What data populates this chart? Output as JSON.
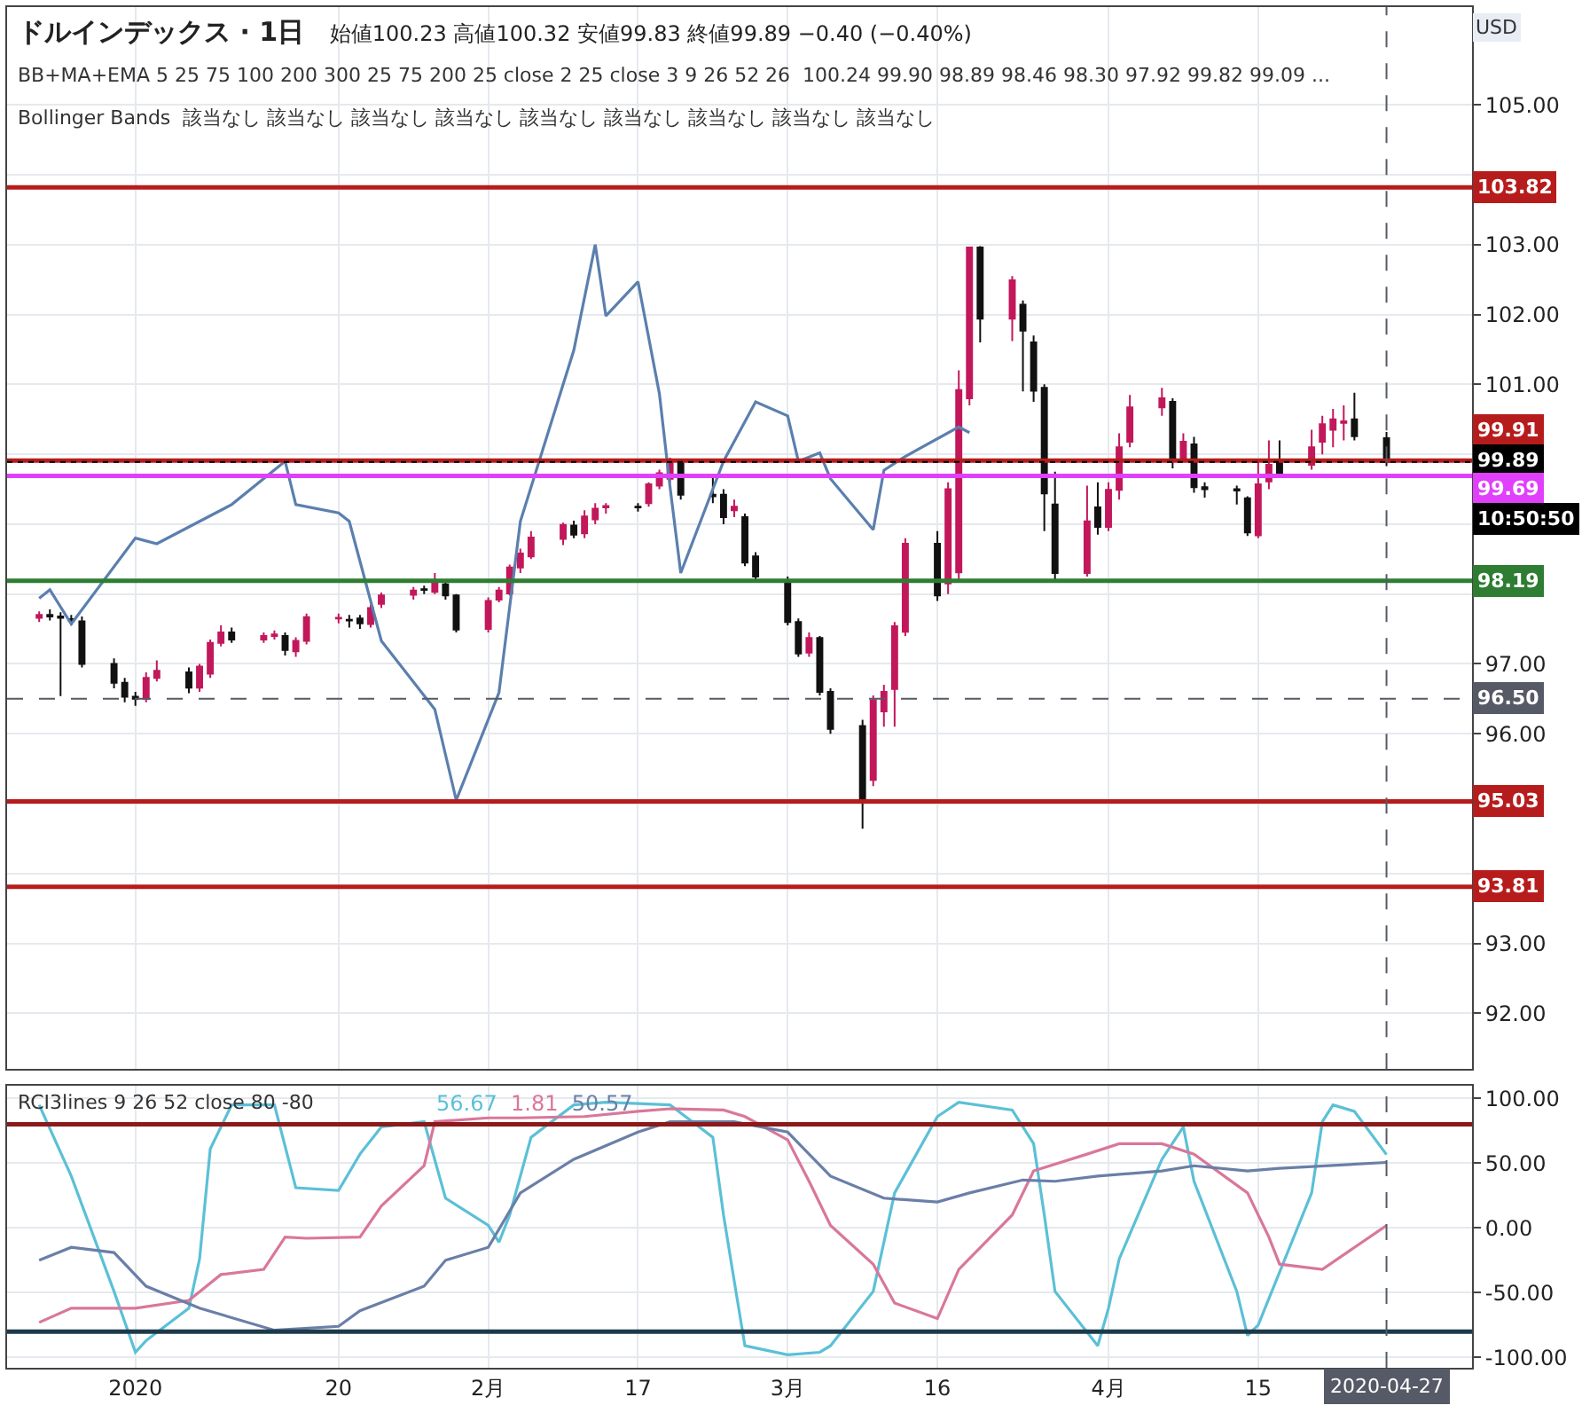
{
  "chart_data": [
    {
      "type": "candlestick",
      "title": "ドルインデックス · 1日",
      "subtitle": "始値100.23 高値100.32 安値99.83 終値99.89 −0.40 (−0.40%)",
      "annotations": [
        "BB+MA+EMA 5 25 75 100 200 300 25 75 200 25 close 2 25 close 3 9 26 52 26  100.24 99.90 98.89 98.46 98.30 97.92 99.82 99.09 ...",
        "Bollinger Bands  該当なし 該当なし 該当なし 該当なし 該当なし 該当なし 該当なし 該当なし 該当なし",
        "USD",
        "10:50:50"
      ],
      "xlim": [
        "2019-12-20",
        "2020-05-05"
      ],
      "xticks": [
        {
          "value": "2020-01-01",
          "label": null
        },
        {
          "value": "2020-01-20",
          "label": null
        },
        {
          "value": "2020-02-03",
          "label": null
        },
        {
          "value": "2020-02-17",
          "label": null
        },
        {
          "value": "2020-03-02",
          "label": null
        },
        {
          "value": "2020-03-16",
          "label": null
        },
        {
          "value": "2020-04-01",
          "label": null
        },
        {
          "value": "2020-04-15",
          "label": null
        }
      ],
      "ylim": [
        91.2,
        106.4
      ],
      "yticks": [
        {
          "value": 92,
          "label": "92.00"
        },
        {
          "value": 93,
          "label": "93.00"
        },
        {
          "value": 94,
          "label": null
        },
        {
          "value": 95,
          "label": null
        },
        {
          "value": 96,
          "label": "96.00"
        },
        {
          "value": 97,
          "label": "97.00"
        },
        {
          "value": 98,
          "label": null
        },
        {
          "value": 99,
          "label": null
        },
        {
          "value": 100,
          "label": null
        },
        {
          "value": 101,
          "label": "101.00"
        },
        {
          "value": 102,
          "label": "102.00"
        },
        {
          "value": 103,
          "label": "103.00"
        },
        {
          "value": 104,
          "label": null
        },
        {
          "value": 105,
          "label": "105.00"
        }
      ],
      "grid": true,
      "tick_labels": "y",
      "ref_lines": [
        {
          "axis": "y",
          "value": 103.82,
          "label": "103.82",
          "color": "#b71c1c"
        },
        {
          "axis": "y",
          "value": 99.91,
          "label": "99.91",
          "color": "#b71c1c"
        },
        {
          "axis": "y",
          "value": 99.89,
          "label": "99.89",
          "color": "#000000",
          "line_style": "dotted"
        },
        {
          "axis": "y",
          "value": 99.69,
          "label": "99.69",
          "color": "#e040fb"
        },
        {
          "axis": "y",
          "value": 98.19,
          "label": "98.19",
          "color": "#2e7d32"
        },
        {
          "axis": "y",
          "value": 96.5,
          "label": "96.50",
          "color": "#555a66",
          "line_style": "dashed"
        },
        {
          "axis": "y",
          "value": 95.03,
          "label": "95.03",
          "color": "#b71c1c"
        },
        {
          "axis": "y",
          "value": 93.81,
          "label": "93.81",
          "color": "#b71c1c"
        },
        {
          "axis": "x",
          "value": "2020-04-27",
          "color": "#555a66",
          "line_style": "dashed"
        }
      ],
      "series": [
        {
          "type": "candlestick",
          "x": [
            "2019-12-23",
            "2019-12-24",
            "2019-12-25",
            "2019-12-26",
            "2019-12-27",
            "2019-12-30",
            "2019-12-31",
            "2020-01-01",
            "2020-01-02",
            "2020-01-03",
            "2020-01-06",
            "2020-01-07",
            "2020-01-08",
            "2020-01-09",
            "2020-01-10",
            "2020-01-13",
            "2020-01-14",
            "2020-01-15",
            "2020-01-16",
            "2020-01-17",
            "2020-01-20",
            "2020-01-21",
            "2020-01-22",
            "2020-01-23",
            "2020-01-24",
            "2020-01-27",
            "2020-01-28",
            "2020-01-29",
            "2020-01-30",
            "2020-01-31",
            "2020-02-03",
            "2020-02-04",
            "2020-02-05",
            "2020-02-06",
            "2020-02-07",
            "2020-02-10",
            "2020-02-11",
            "2020-02-12",
            "2020-02-13",
            "2020-02-14",
            "2020-02-17",
            "2020-02-18",
            "2020-02-19",
            "2020-02-20",
            "2020-02-21",
            "2020-02-24",
            "2020-02-25",
            "2020-02-26",
            "2020-02-27",
            "2020-02-28",
            "2020-03-02",
            "2020-03-03",
            "2020-03-04",
            "2020-03-05",
            "2020-03-06",
            "2020-03-09",
            "2020-03-10",
            "2020-03-11",
            "2020-03-12",
            "2020-03-13",
            "2020-03-16",
            "2020-03-17",
            "2020-03-18",
            "2020-03-19",
            "2020-03-20",
            "2020-03-23",
            "2020-03-24",
            "2020-03-25",
            "2020-03-26",
            "2020-03-27",
            "2020-03-30",
            "2020-03-31",
            "2020-04-01",
            "2020-04-02",
            "2020-04-03",
            "2020-04-06",
            "2020-04-07",
            "2020-04-08",
            "2020-04-09",
            "2020-04-10",
            "2020-04-13",
            "2020-04-14",
            "2020-04-15",
            "2020-04-16",
            "2020-04-17",
            "2020-04-20",
            "2020-04-21",
            "2020-04-22",
            "2020-04-23",
            "2020-04-24",
            "2020-04-27"
          ],
          "ohlc": [
            [
              97.66,
              97.75,
              97.6,
              97.7
            ],
            [
              97.7,
              97.78,
              97.62,
              97.68
            ],
            [
              97.68,
              97.74,
              96.54,
              97.66
            ],
            [
              97.64,
              97.7,
              97.55,
              97.62
            ],
            [
              97.61,
              97.68,
              96.95,
              97.0
            ],
            [
              97.0,
              97.08,
              96.65,
              96.73
            ],
            [
              96.73,
              96.8,
              96.45,
              96.53
            ],
            [
              96.53,
              96.6,
              96.4,
              96.5
            ],
            [
              96.5,
              96.88,
              96.45,
              96.8
            ],
            [
              96.8,
              97.05,
              96.75,
              96.9
            ],
            [
              96.88,
              96.95,
              96.58,
              96.66
            ],
            [
              96.66,
              97.0,
              96.6,
              96.96
            ],
            [
              96.86,
              97.35,
              96.8,
              97.3
            ],
            [
              97.3,
              97.55,
              97.25,
              97.45
            ],
            [
              97.45,
              97.52,
              97.3,
              97.35
            ],
            [
              97.35,
              97.45,
              97.3,
              97.4
            ],
            [
              97.4,
              97.48,
              97.35,
              97.42
            ],
            [
              97.4,
              97.45,
              97.12,
              97.2
            ],
            [
              97.18,
              97.38,
              97.1,
              97.33
            ],
            [
              97.33,
              97.72,
              97.28,
              97.67
            ],
            [
              97.65,
              97.72,
              97.58,
              97.66
            ],
            [
              97.63,
              97.7,
              97.52,
              97.62
            ],
            [
              97.65,
              97.7,
              97.5,
              97.58
            ],
            [
              97.57,
              97.85,
              97.52,
              97.8
            ],
            [
              97.86,
              98.02,
              97.8,
              97.98
            ],
            [
              97.99,
              98.1,
              97.92,
              98.05
            ],
            [
              98.07,
              98.12,
              98.0,
              98.06
            ],
            [
              98.03,
              98.3,
              98.0,
              98.18
            ],
            [
              98.14,
              98.2,
              97.92,
              97.98
            ],
            [
              97.98,
              98.0,
              97.45,
              97.49
            ],
            [
              97.5,
              97.95,
              97.45,
              97.9
            ],
            [
              97.92,
              98.1,
              97.88,
              98.05
            ],
            [
              98.01,
              98.42,
              97.98,
              98.38
            ],
            [
              98.38,
              98.65,
              98.3,
              98.58
            ],
            [
              98.54,
              98.9,
              98.5,
              98.81
            ],
            [
              98.79,
              99.02,
              98.7,
              98.99
            ],
            [
              98.98,
              99.05,
              98.8,
              98.85
            ],
            [
              98.87,
              99.2,
              98.8,
              99.11
            ],
            [
              99.07,
              99.3,
              99.0,
              99.22
            ],
            [
              99.24,
              99.3,
              99.15,
              99.26
            ],
            [
              99.25,
              99.3,
              99.18,
              99.24
            ],
            [
              99.3,
              99.6,
              99.25,
              99.57
            ],
            [
              99.55,
              99.78,
              99.5,
              99.73
            ],
            [
              99.65,
              99.95,
              99.6,
              99.91
            ],
            [
              99.91,
              99.93,
              99.35,
              99.42
            ],
            [
              99.42,
              99.72,
              99.3,
              99.4
            ],
            [
              99.42,
              99.5,
              99.0,
              99.1
            ],
            [
              99.2,
              99.35,
              99.1,
              99.25
            ],
            [
              99.1,
              99.15,
              98.4,
              98.45
            ],
            [
              98.54,
              98.6,
              98.2,
              98.25
            ],
            [
              98.2,
              98.25,
              97.55,
              97.6
            ],
            [
              97.6,
              97.65,
              97.1,
              97.15
            ],
            [
              97.16,
              97.45,
              97.1,
              97.37
            ],
            [
              97.37,
              97.4,
              96.55,
              96.6
            ],
            [
              96.6,
              96.65,
              96.0,
              96.07
            ],
            [
              96.11,
              96.2,
              94.64,
              95.05
            ],
            [
              95.34,
              96.55,
              95.25,
              96.48
            ],
            [
              96.32,
              96.7,
              96.1,
              96.6
            ],
            [
              96.64,
              97.6,
              96.1,
              97.54
            ],
            [
              97.46,
              98.8,
              97.4,
              98.72
            ],
            [
              98.72,
              98.9,
              97.9,
              97.98
            ],
            [
              98.15,
              99.6,
              98.0,
              99.5
            ],
            [
              98.31,
              101.2,
              98.2,
              100.92
            ],
            [
              100.8,
              102.96,
              100.7,
              102.96
            ],
            [
              102.96,
              102.98,
              101.6,
              101.94
            ],
            [
              101.94,
              102.55,
              101.62,
              102.49
            ],
            [
              102.14,
              102.2,
              100.9,
              101.77
            ],
            [
              101.6,
              101.7,
              100.75,
              100.91
            ],
            [
              100.95,
              101.0,
              98.9,
              99.44
            ],
            [
              99.28,
              99.75,
              98.2,
              98.3
            ],
            [
              98.3,
              99.55,
              98.25,
              99.04
            ],
            [
              99.24,
              99.6,
              98.85,
              98.96
            ],
            [
              98.96,
              99.6,
              98.9,
              99.49
            ],
            [
              99.49,
              100.3,
              99.35,
              100.1
            ],
            [
              100.18,
              100.85,
              100.1,
              100.67
            ],
            [
              100.67,
              100.95,
              100.55,
              100.8
            ],
            [
              100.75,
              100.8,
              99.8,
              99.94
            ],
            [
              99.94,
              100.3,
              99.9,
              100.18
            ],
            [
              100.14,
              100.25,
              99.45,
              99.53
            ],
            [
              99.53,
              99.6,
              99.38,
              99.5
            ],
            [
              99.5,
              99.55,
              99.28,
              99.48
            ],
            [
              99.37,
              99.4,
              98.83,
              98.88
            ],
            [
              98.84,
              99.9,
              98.8,
              99.57
            ],
            [
              99.61,
              100.2,
              99.5,
              99.85
            ],
            [
              99.9,
              100.2,
              99.7,
              99.73
            ],
            [
              99.85,
              100.35,
              99.78,
              100.1
            ],
            [
              100.18,
              100.55,
              100.0,
              100.43
            ],
            [
              100.35,
              100.65,
              100.1,
              100.5
            ],
            [
              100.45,
              100.7,
              100.2,
              100.47
            ],
            [
              100.5,
              100.88,
              100.2,
              100.26
            ],
            [
              100.23,
              100.32,
              99.83,
              99.89
            ]
          ],
          "colors": [
            "#c2185b",
            "#111111",
            "#111111",
            "#111111",
            "#111111",
            "#111111",
            "#111111",
            "#111111",
            "#c2185b",
            "#c2185b",
            "#111111",
            "#c2185b",
            "#c2185b",
            "#c2185b",
            "#111111",
            "#c2185b",
            "#c2185b",
            "#111111",
            "#c2185b",
            "#c2185b",
            "#c2185b",
            "#111111",
            "#111111",
            "#c2185b",
            "#c2185b",
            "#c2185b",
            "#111111",
            "#c2185b",
            "#111111",
            "#111111",
            "#c2185b",
            "#c2185b",
            "#c2185b",
            "#c2185b",
            "#c2185b",
            "#c2185b",
            "#111111",
            "#c2185b",
            "#c2185b",
            "#c2185b",
            "#111111",
            "#c2185b",
            "#c2185b",
            "#c2185b",
            "#111111",
            "#111111",
            "#111111",
            "#c2185b",
            "#111111",
            "#111111",
            "#111111",
            "#111111",
            "#c2185b",
            "#111111",
            "#111111",
            "#111111",
            "#c2185b",
            "#c2185b",
            "#c2185b",
            "#c2185b",
            "#111111",
            "#c2185b",
            "#c2185b",
            "#c2185b",
            "#111111",
            "#c2185b",
            "#111111",
            "#111111",
            "#111111",
            "#111111",
            "#c2185b",
            "#111111",
            "#c2185b",
            "#c2185b",
            "#c2185b",
            "#c2185b",
            "#111111",
            "#c2185b",
            "#111111",
            "#111111",
            "#111111",
            "#111111",
            "#c2185b",
            "#c2185b",
            "#111111",
            "#c2185b",
            "#c2185b",
            "#c2185b",
            "#c2185b",
            "#111111",
            "#111111"
          ]
        },
        {
          "type": "line",
          "color": "#5b7fae",
          "x": [
            "2019-12-23",
            "2019-12-24",
            "2019-12-26",
            "2020-01-01",
            "2020-01-03",
            "2020-01-07",
            "2020-01-10",
            "2020-01-15",
            "2020-01-16",
            "2020-01-20",
            "2020-01-21",
            "2020-01-24",
            "2020-01-29",
            "2020-01-31",
            "2020-02-04",
            "2020-02-06",
            "2020-02-11",
            "2020-02-13",
            "2020-02-14",
            "2020-02-17",
            "2020-02-19",
            "2020-02-20",
            "2020-02-21",
            "2020-02-25",
            "2020-02-28",
            "2020-03-02",
            "2020-03-03",
            "2020-03-05",
            "2020-03-06",
            "2020-03-10",
            "2020-03-11",
            "2020-03-13",
            "2020-03-18",
            "2020-03-19"
          ],
          "values": [
            97.94,
            98.06,
            97.57,
            98.8,
            98.72,
            99.04,
            99.28,
            99.9,
            99.28,
            99.16,
            99.04,
            97.33,
            96.35,
            95.05,
            96.59,
            99.04,
            101.49,
            103.0,
            101.98,
            102.47,
            100.87,
            99.53,
            98.3,
            99.9,
            100.75,
            100.55,
            99.9,
            100.02,
            99.65,
            98.92,
            99.77,
            99.97,
            100.39,
            100.31
          ]
        }
      ]
    },
    {
      "type": "line",
      "annotations": [
        "RCI3lines 9 26 52 close 80 -80"
      ],
      "xlim": [
        "2019-12-20",
        "2020-05-05"
      ],
      "xticks": [
        {
          "value": "2020-01-01",
          "label": "2020"
        },
        {
          "value": "2020-01-20",
          "label": "20"
        },
        {
          "value": "2020-02-03",
          "label": "2月"
        },
        {
          "value": "2020-02-17",
          "label": "17"
        },
        {
          "value": "2020-03-02",
          "label": "3月"
        },
        {
          "value": "2020-03-16",
          "label": "16"
        },
        {
          "value": "2020-04-01",
          "label": "4月"
        },
        {
          "value": "2020-04-15",
          "label": "15"
        }
      ],
      "ylim": [
        -108,
        110
      ],
      "yticks": [
        {
          "value": -100,
          "label": "-100.00"
        },
        {
          "value": -50,
          "label": "-50.00"
        },
        {
          "value": 0,
          "label": "0.00"
        },
        {
          "value": 50,
          "label": "50.00"
        },
        {
          "value": 100,
          "label": "100.00"
        }
      ],
      "grid": true,
      "ref_lines": [
        {
          "axis": "y",
          "value": 80,
          "color": "#8b1a1a"
        },
        {
          "axis": "y",
          "value": -80,
          "color": "#1c3a4a"
        },
        {
          "axis": "x",
          "value": "2020-04-27",
          "label": "2020-04-27",
          "color": "#555a66",
          "line_style": "dashed"
        }
      ],
      "series": [
        {
          "name": "56.67",
          "color": "#5bc0d6",
          "x": [
            "2019-12-23",
            "2019-12-26",
            "2019-12-30",
            "2020-01-01",
            "2020-01-02",
            "2020-01-06",
            "2020-01-07",
            "2020-01-08",
            "2020-01-10",
            "2020-01-14",
            "2020-01-16",
            "2020-01-20",
            "2020-01-22",
            "2020-01-24",
            "2020-01-28",
            "2020-01-30",
            "2020-02-03",
            "2020-02-04",
            "2020-02-05",
            "2020-02-07",
            "2020-02-11",
            "2020-02-14",
            "2020-02-20",
            "2020-02-24",
            "2020-02-25",
            "2020-02-26",
            "2020-02-27",
            "2020-03-02",
            "2020-03-05",
            "2020-03-06",
            "2020-03-10",
            "2020-03-12",
            "2020-03-16",
            "2020-03-18",
            "2020-03-23",
            "2020-03-25",
            "2020-03-26",
            "2020-03-27",
            "2020-03-31",
            "2020-04-01",
            "2020-04-02",
            "2020-04-06",
            "2020-04-08",
            "2020-04-09",
            "2020-04-13",
            "2020-04-14",
            "2020-04-15",
            "2020-04-20",
            "2020-04-21",
            "2020-04-22",
            "2020-04-24",
            "2020-04-27"
          ],
          "values": [
            95,
            40,
            -49,
            -96,
            -87,
            -62,
            -24,
            61,
            95,
            95,
            31,
            29,
            57,
            78,
            82,
            23,
            2,
            -11,
            10,
            70,
            95,
            97,
            95,
            70,
            10,
            -41,
            -91,
            -98,
            -96,
            -91,
            -49,
            27,
            86,
            97,
            91,
            65,
            10,
            -49,
            -91,
            -62,
            -24,
            53,
            78,
            36,
            -49,
            -83,
            -75,
            27,
            82,
            95,
            90,
            56.67
          ]
        },
        {
          "name": "1.81",
          "color": "#d9779a",
          "x": [
            "2019-12-23",
            "2019-12-26",
            "2020-01-01",
            "2020-01-06",
            "2020-01-09",
            "2020-01-13",
            "2020-01-15",
            "2020-01-17",
            "2020-01-22",
            "2020-01-24",
            "2020-01-28",
            "2020-01-29",
            "2020-02-03",
            "2020-02-06",
            "2020-02-12",
            "2020-02-17",
            "2020-02-20",
            "2020-02-25",
            "2020-02-27",
            "2020-03-02",
            "2020-03-04",
            "2020-03-06",
            "2020-03-10",
            "2020-03-12",
            "2020-03-16",
            "2020-03-18",
            "2020-03-23",
            "2020-03-25",
            "2020-03-30",
            "2020-04-02",
            "2020-04-06",
            "2020-04-09",
            "2020-04-14",
            "2020-04-16",
            "2020-04-17",
            "2020-04-21",
            "2020-04-27"
          ],
          "values": [
            -73,
            -62,
            -62,
            -56,
            -36,
            -32,
            -7,
            -8,
            -7,
            17,
            48,
            82,
            85,
            85,
            86,
            90,
            92,
            91,
            86,
            68,
            36,
            2,
            -28,
            -58,
            -70,
            -32,
            10,
            44,
            57,
            65,
            65,
            57,
            27,
            -7,
            -28,
            -32,
            1.81
          ]
        },
        {
          "name": "50.57",
          "color": "#6a7fa8",
          "x": [
            "2019-12-23",
            "2019-12-26",
            "2019-12-30",
            "2020-01-02",
            "2020-01-07",
            "2020-01-14",
            "2020-01-20",
            "2020-01-22",
            "2020-01-28",
            "2020-01-30",
            "2020-02-03",
            "2020-02-06",
            "2020-02-11",
            "2020-02-17",
            "2020-02-20",
            "2020-02-26",
            "2020-03-02",
            "2020-03-04",
            "2020-03-06",
            "2020-03-11",
            "2020-03-16",
            "2020-03-19",
            "2020-03-24",
            "2020-03-27",
            "2020-03-31",
            "2020-04-06",
            "2020-04-09",
            "2020-04-14",
            "2020-04-17",
            "2020-04-27"
          ],
          "values": [
            -25,
            -15,
            -19,
            -45,
            -62,
            -79,
            -76,
            -64,
            -45,
            -25,
            -15,
            27,
            53,
            74,
            82,
            82,
            74,
            57,
            40,
            23,
            20,
            27,
            37,
            36,
            40,
            44,
            48,
            44,
            46,
            50.57
          ]
        }
      ]
    }
  ]
}
